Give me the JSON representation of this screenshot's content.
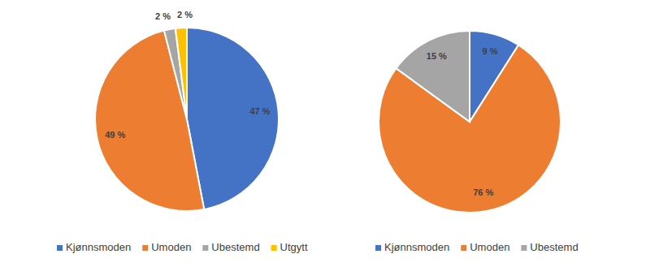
{
  "chart_data": [
    {
      "type": "pie",
      "categories": [
        "Kjønnsmoden",
        "Umoden",
        "Ubestemd",
        "Utgytt"
      ],
      "values": [
        47,
        49,
        2,
        2
      ],
      "value_labels": [
        "47 %",
        "49 %",
        "2 %",
        "2 %"
      ],
      "colors": [
        "#4472c4",
        "#ed7d31",
        "#a5a5a5",
        "#ffc000"
      ],
      "data_labels": true,
      "legend": "bottom"
    },
    {
      "type": "pie",
      "categories": [
        "Kjønnsmoden",
        "Umoden",
        "Ubestemd"
      ],
      "values": [
        9,
        76,
        15
      ],
      "value_labels": [
        "9 %",
        "76 %",
        "15 %"
      ],
      "colors": [
        "#4472c4",
        "#ed7d31",
        "#a5a5a5"
      ],
      "data_labels": true,
      "legend": "bottom"
    }
  ]
}
